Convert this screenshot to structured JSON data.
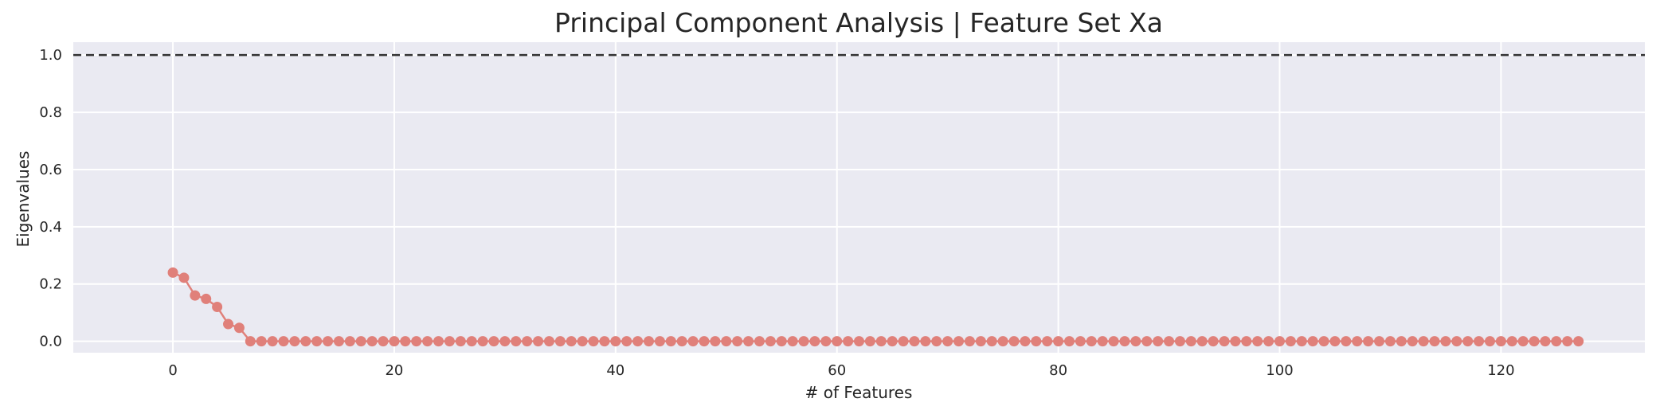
{
  "chart_data": {
    "type": "line",
    "title": "Principal Component Analysis | Feature Set Xa",
    "xlabel": "# of Features",
    "ylabel": "Eigenvalues",
    "xlim": [
      -9,
      133
    ],
    "ylim": [
      -0.04,
      1.045
    ],
    "xticks": [
      0,
      20,
      40,
      60,
      80,
      100,
      120
    ],
    "yticks": [
      0.0,
      0.2,
      0.4,
      0.6,
      0.8,
      1.0
    ],
    "xtick_labels": [
      "0",
      "20",
      "40",
      "60",
      "80",
      "100",
      "120"
    ],
    "ytick_labels": [
      "0.0",
      "0.2",
      "0.4",
      "0.6",
      "0.8",
      "1.0"
    ],
    "grid": true,
    "reference_line": {
      "y": 1.0,
      "style": "dashed",
      "color": "#333333"
    },
    "series": [
      {
        "color": "#e0807a",
        "marker": "circle",
        "x_start": 0,
        "x_end": 127,
        "values": [
          0.24,
          0.222,
          0.16,
          0.148,
          0.12,
          0.06,
          0.047
        ]
      }
    ]
  }
}
